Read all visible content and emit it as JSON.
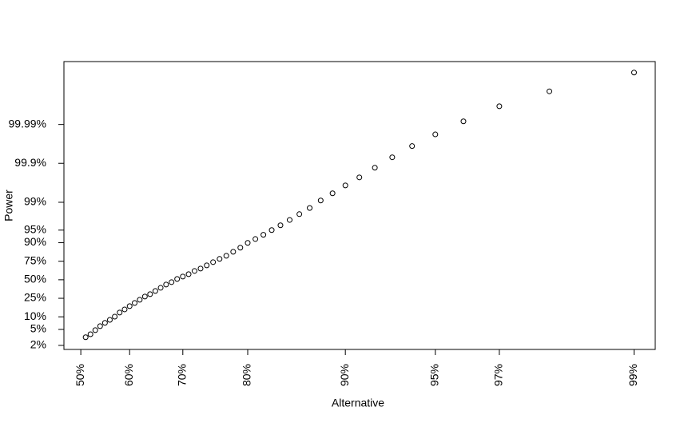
{
  "chart_data": {
    "type": "scatter",
    "x_label": "Alternative",
    "y_label": "Power",
    "xscale": "logit",
    "yscale": "logit",
    "xlim": [
      46.5,
      99.16
    ],
    "ylim": [
      1.58,
      99.99976
    ],
    "xticks": [
      {
        "value": 50,
        "label": "50%"
      },
      {
        "value": 60,
        "label": "60%"
      },
      {
        "value": 70,
        "label": "70%"
      },
      {
        "value": 80,
        "label": "80%"
      },
      {
        "value": 90,
        "label": "90%"
      },
      {
        "value": 95,
        "label": "95%"
      },
      {
        "value": 97,
        "label": "97%"
      },
      {
        "value": 99,
        "label": "99%"
      }
    ],
    "yticks": [
      {
        "value": 2,
        "label": "2%"
      },
      {
        "value": 5,
        "label": "5%"
      },
      {
        "value": 10,
        "label": "10%"
      },
      {
        "value": 25,
        "label": "25%"
      },
      {
        "value": 50,
        "label": "50%"
      },
      {
        "value": 75,
        "label": "75%"
      },
      {
        "value": 90,
        "label": "90%"
      },
      {
        "value": 95,
        "label": "95%"
      },
      {
        "value": 99,
        "label": "99%"
      },
      {
        "value": 99.9,
        "label": "99.9%"
      },
      {
        "value": 99.99,
        "label": "99.99%"
      }
    ],
    "color": "#000000",
    "x": [
      51,
      52,
      53,
      54,
      55,
      56,
      57,
      58,
      59,
      60,
      61,
      62,
      63,
      64,
      65,
      66,
      67,
      68,
      69,
      70,
      71,
      72,
      73,
      74,
      75,
      76,
      77,
      78,
      79,
      80,
      81,
      82,
      83,
      84,
      85,
      86,
      87,
      88,
      89,
      90,
      91,
      92,
      93,
      94,
      95,
      96,
      97,
      98,
      99
    ],
    "y": [
      3.2,
      3.8,
      4.8,
      6.0,
      7.2,
      8.5,
      10.1,
      12.5,
      14.7,
      17.3,
      20.2,
      23.4,
      27.0,
      29.9,
      34.0,
      38.3,
      42.9,
      46.5,
      51.2,
      54.7,
      58.2,
      62.8,
      66.0,
      70.1,
      74.0,
      77.5,
      80.6,
      84.0,
      87.0,
      89.9,
      91.8,
      93.5,
      95.0,
      96.2,
      97.2,
      98.0,
      98.6,
      99.1,
      99.41,
      99.63,
      99.77,
      99.87,
      99.93,
      99.964,
      99.982,
      99.9917,
      99.9966,
      99.9986,
      99.99954
    ]
  }
}
